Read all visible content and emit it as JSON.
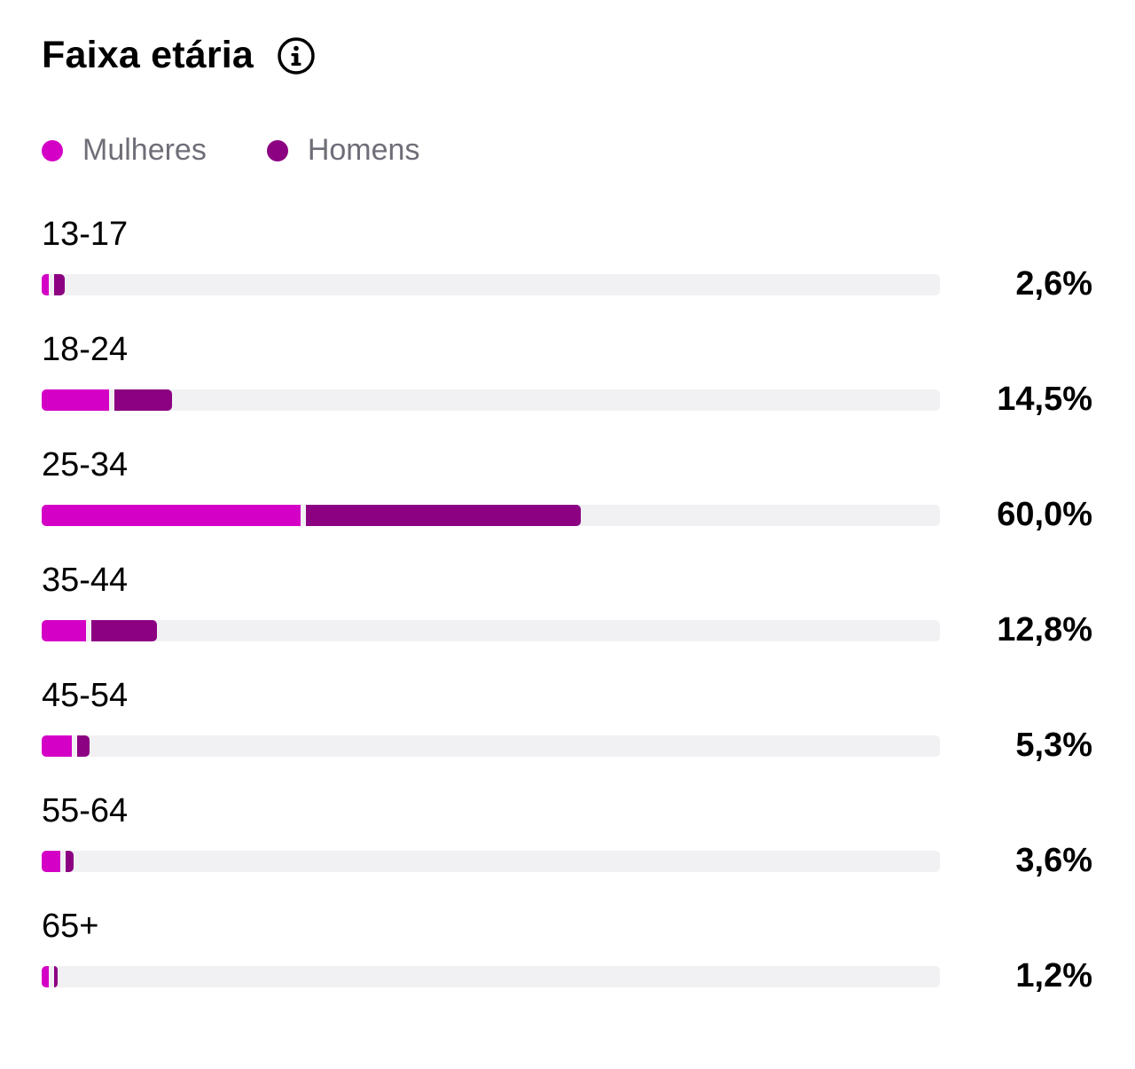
{
  "header": {
    "title": "Faixa etária",
    "info_icon": "info-circle-icon"
  },
  "colors": {
    "women": "#d400c6",
    "men": "#8c0082",
    "track": "#f1f1f4"
  },
  "legend": {
    "women_label": "Mulheres",
    "men_label": "Homens"
  },
  "chart_data": {
    "type": "bar",
    "orientation": "horizontal",
    "stacked": true,
    "xlim": [
      0,
      100
    ],
    "categories": [
      "13-17",
      "18-24",
      "25-34",
      "35-44",
      "45-54",
      "55-64",
      "65+"
    ],
    "totals_labels": [
      "2,6%",
      "14,5%",
      "60,0%",
      "12,8%",
      "5,3%",
      "3,6%",
      "1,2%"
    ],
    "totals": [
      2.6,
      14.5,
      60.0,
      12.8,
      5.3,
      3.6,
      1.2
    ],
    "series": [
      {
        "name": "Mulheres",
        "values": [
          0.8,
          7.5,
          28.8,
          4.9,
          3.4,
          2.1,
          0.8
        ]
      },
      {
        "name": "Homens",
        "values": [
          1.8,
          7.0,
          31.2,
          7.9,
          1.9,
          1.5,
          0.4
        ]
      }
    ]
  }
}
